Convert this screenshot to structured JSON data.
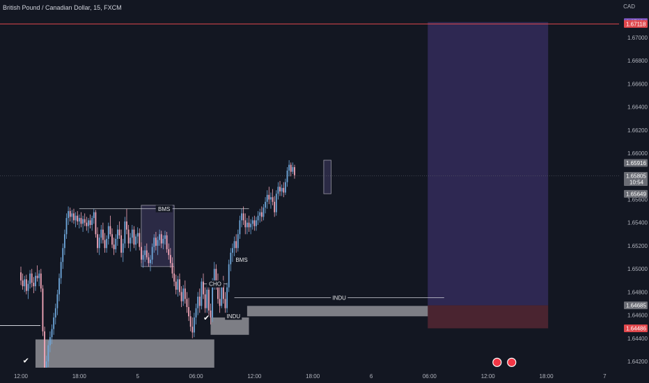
{
  "title": "British Pound / Canadian Dollar, 15, FXCM",
  "currency_label": "CAD",
  "colors": {
    "background": "#131722",
    "up": "#6fa8dc",
    "down": "#f4a7b9",
    "axis_text": "#b2b5be",
    "target_zone": "#2e2852",
    "stop_zone": "#4a2430",
    "order_block": "#7d7e85",
    "resistance_line": "#e0474c"
  },
  "chart_data": {
    "type": "candlestick",
    "ylim": [
      1.6405,
      1.6735
    ],
    "y_ticks": [
      "1.67000",
      "1.66800",
      "1.66600",
      "1.66400",
      "1.66200",
      "1.66000",
      "1.65800",
      "1.65600",
      "1.65400",
      "1.65200",
      "1.65000",
      "1.64800",
      "1.64600",
      "1.64400",
      "1.64200"
    ],
    "x_ticks": [
      "12:00",
      "18:00",
      "5",
      "06:00",
      "12:00",
      "18:00",
      "6",
      "06:00",
      "12:00",
      "18:00",
      "7"
    ],
    "x_tick_index": [
      0,
      32,
      64,
      96,
      128,
      160,
      192,
      224,
      256,
      288,
      320
    ],
    "price_labels": [
      {
        "value": 1.67134,
        "text": "1.67134",
        "color": "#7e57c2"
      },
      {
        "value": 1.67118,
        "text": "1.67118",
        "color": "#e0474c"
      },
      {
        "value": 1.65916,
        "text": "1.65916",
        "color": "#6b6d75"
      },
      {
        "value": 1.65805,
        "text": "1.65805",
        "sub": "10:54",
        "color": "#6b6d75"
      },
      {
        "value": 1.65649,
        "text": "1.65649",
        "color": "#6b6d75"
      },
      {
        "value": 1.64685,
        "text": "1.64685",
        "color": "#6b6d75"
      },
      {
        "value": 1.64486,
        "text": "1.64486",
        "color": "#e0474c"
      }
    ],
    "resistance_level": 1.67118,
    "current_price": 1.65805,
    "annotations": [
      {
        "text": "BMS",
        "x1": 32,
        "x2": 125,
        "y": 1.6552
      },
      {
        "text": "BMS",
        "x1": 117,
        "x2": 125,
        "y": 1.6508
      },
      {
        "text": "CHO",
        "x1": 100,
        "x2": 113,
        "y": 1.6487
      },
      {
        "text": "INDU",
        "x1": 113,
        "x2": 120,
        "y": 1.6459
      },
      {
        "text": "INDU",
        "x1": 117,
        "x2": 232,
        "y": 1.6475
      }
    ],
    "zones": [
      {
        "kind": "order_block",
        "x1": 8,
        "x2": 106,
        "y1": 1.6439,
        "y2": 1.6411
      },
      {
        "kind": "order_block",
        "x1": 104,
        "x2": 125,
        "y1": 1.6458,
        "y2": 1.6443
      },
      {
        "kind": "order_block",
        "x1": 124,
        "x2": 232,
        "y1": 1.6468,
        "y2": 1.6459
      },
      {
        "kind": "imbalance",
        "x1": 66,
        "x2": 84,
        "y1": 1.6555,
        "y2": 1.6502
      },
      {
        "kind": "imbalance",
        "x1": 166,
        "x2": 170,
        "y1": 1.6594,
        "y2": 1.6565
      },
      {
        "kind": "target",
        "x1": 223,
        "x2": 289,
        "y1": 1.67134,
        "y2": 1.64685
      },
      {
        "kind": "stop",
        "x1": 223,
        "x2": 289,
        "y1": 1.64685,
        "y2": 1.64486
      }
    ],
    "checkmarks": [
      {
        "x": 1,
        "y": 1.6421
      },
      {
        "x": 100,
        "y": 1.6458
      }
    ],
    "event_icons": [
      {
        "x": 261,
        "y": 1.6421
      },
      {
        "x": 269,
        "y": 1.6421
      }
    ],
    "ohlc": [
      [
        1.6497,
        1.6502,
        1.6486,
        1.649
      ],
      [
        1.649,
        1.6496,
        1.6482,
        1.6485
      ],
      [
        1.6485,
        1.6494,
        1.648,
        1.6491
      ],
      [
        1.6491,
        1.6495,
        1.6478,
        1.6481
      ],
      [
        1.6481,
        1.649,
        1.6474,
        1.6487
      ],
      [
        1.6487,
        1.6499,
        1.6483,
        1.6496
      ],
      [
        1.6496,
        1.65,
        1.6484,
        1.6488
      ],
      [
        1.6488,
        1.6493,
        1.6479,
        1.6485
      ],
      [
        1.6485,
        1.6497,
        1.6481,
        1.6494
      ],
      [
        1.6494,
        1.6503,
        1.6489,
        1.6492
      ],
      [
        1.6492,
        1.6499,
        1.6485,
        1.6496
      ],
      [
        1.6496,
        1.65,
        1.648,
        1.6483
      ],
      [
        1.6483,
        1.6486,
        1.6442,
        1.6446
      ],
      [
        1.6446,
        1.645,
        1.6408,
        1.6412
      ],
      [
        1.6412,
        1.6425,
        1.6406,
        1.642
      ],
      [
        1.642,
        1.6438,
        1.6415,
        1.6434
      ],
      [
        1.6434,
        1.6446,
        1.6428,
        1.6441
      ],
      [
        1.6441,
        1.6452,
        1.6435,
        1.6448
      ],
      [
        1.6448,
        1.6462,
        1.6443,
        1.6458
      ],
      [
        1.6458,
        1.647,
        1.6452,
        1.6466
      ],
      [
        1.6466,
        1.6482,
        1.646,
        1.6478
      ],
      [
        1.6478,
        1.6496,
        1.6472,
        1.6492
      ],
      [
        1.6492,
        1.651,
        1.6487,
        1.6506
      ],
      [
        1.6506,
        1.6522,
        1.65,
        1.6518
      ],
      [
        1.6518,
        1.6534,
        1.6512,
        1.653
      ],
      [
        1.653,
        1.6548,
        1.6526,
        1.6544
      ],
      [
        1.6544,
        1.6554,
        1.6538,
        1.655
      ],
      [
        1.655,
        1.6553,
        1.6541,
        1.6545
      ],
      [
        1.6545,
        1.6551,
        1.654,
        1.6548
      ],
      [
        1.6548,
        1.6552,
        1.6539,
        1.6542
      ],
      [
        1.6542,
        1.6549,
        1.6536,
        1.6546
      ],
      [
        1.6546,
        1.655,
        1.6538,
        1.6541
      ],
      [
        1.6541,
        1.6547,
        1.6535,
        1.6544
      ],
      [
        1.6544,
        1.6549,
        1.6536,
        1.6539
      ],
      [
        1.6539,
        1.6546,
        1.6532,
        1.6543
      ],
      [
        1.6543,
        1.6548,
        1.6537,
        1.654
      ],
      [
        1.654,
        1.6545,
        1.6533,
        1.6537
      ],
      [
        1.6537,
        1.6544,
        1.6531,
        1.6542
      ],
      [
        1.6542,
        1.6547,
        1.6535,
        1.6538
      ],
      [
        1.6538,
        1.6546,
        1.6533,
        1.6544
      ],
      [
        1.6544,
        1.6552,
        1.6539,
        1.6549
      ],
      [
        1.6549,
        1.6551,
        1.6527,
        1.653
      ],
      [
        1.653,
        1.6536,
        1.6514,
        1.6518
      ],
      [
        1.6518,
        1.653,
        1.6512,
        1.6527
      ],
      [
        1.6527,
        1.6538,
        1.6522,
        1.6534
      ],
      [
        1.6534,
        1.654,
        1.6522,
        1.6525
      ],
      [
        1.6525,
        1.6531,
        1.6514,
        1.6518
      ],
      [
        1.6518,
        1.6529,
        1.6514,
        1.6526
      ],
      [
        1.6526,
        1.654,
        1.6521,
        1.6537
      ],
      [
        1.6537,
        1.6546,
        1.6528,
        1.653
      ],
      [
        1.653,
        1.6535,
        1.6518,
        1.6521
      ],
      [
        1.6521,
        1.6527,
        1.6512,
        1.6517
      ],
      [
        1.6517,
        1.653,
        1.6514,
        1.6526
      ],
      [
        1.6526,
        1.6538,
        1.652,
        1.6534
      ],
      [
        1.6534,
        1.6541,
        1.6526,
        1.6529
      ],
      [
        1.6529,
        1.6534,
        1.651,
        1.6514
      ],
      [
        1.6514,
        1.6526,
        1.6506,
        1.6522
      ],
      [
        1.6522,
        1.6545,
        1.6518,
        1.6541
      ],
      [
        1.6541,
        1.6552,
        1.653,
        1.6534
      ],
      [
        1.6534,
        1.6538,
        1.6518,
        1.6522
      ],
      [
        1.6522,
        1.6531,
        1.6515,
        1.6527
      ],
      [
        1.6527,
        1.6538,
        1.6522,
        1.6534
      ],
      [
        1.6534,
        1.6537,
        1.6518,
        1.6521
      ],
      [
        1.6521,
        1.653,
        1.6516,
        1.6528
      ],
      [
        1.6528,
        1.6536,
        1.6522,
        1.6531
      ],
      [
        1.6531,
        1.6535,
        1.6516,
        1.6519
      ],
      [
        1.6519,
        1.6523,
        1.6505,
        1.6508
      ],
      [
        1.6508,
        1.6516,
        1.6501,
        1.6512
      ],
      [
        1.6512,
        1.652,
        1.6506,
        1.6516
      ],
      [
        1.6516,
        1.6522,
        1.6508,
        1.651
      ],
      [
        1.651,
        1.6514,
        1.6502,
        1.6505
      ],
      [
        1.6505,
        1.6512,
        1.6498,
        1.6508
      ],
      [
        1.6508,
        1.6522,
        1.6504,
        1.6519
      ],
      [
        1.6519,
        1.653,
        1.6514,
        1.6527
      ],
      [
        1.6527,
        1.6532,
        1.6516,
        1.652
      ],
      [
        1.652,
        1.6528,
        1.6512,
        1.6525
      ],
      [
        1.6525,
        1.6534,
        1.652,
        1.653
      ],
      [
        1.653,
        1.6533,
        1.6518,
        1.6522
      ],
      [
        1.6522,
        1.6529,
        1.6517,
        1.6526
      ],
      [
        1.6526,
        1.6533,
        1.6521,
        1.6529
      ],
      [
        1.6529,
        1.6532,
        1.6514,
        1.6517
      ],
      [
        1.6517,
        1.6522,
        1.6508,
        1.6512
      ],
      [
        1.6512,
        1.6518,
        1.6501,
        1.6505
      ],
      [
        1.6505,
        1.651,
        1.6492,
        1.6496
      ],
      [
        1.6496,
        1.6502,
        1.6485,
        1.6489
      ],
      [
        1.6489,
        1.6495,
        1.6478,
        1.6482
      ],
      [
        1.6482,
        1.6494,
        1.6476,
        1.6491
      ],
      [
        1.6491,
        1.6496,
        1.6477,
        1.648
      ],
      [
        1.648,
        1.6485,
        1.6467,
        1.6472
      ],
      [
        1.6472,
        1.6486,
        1.6468,
        1.6483
      ],
      [
        1.6483,
        1.649,
        1.647,
        1.6474
      ],
      [
        1.6474,
        1.648,
        1.6462,
        1.6467
      ],
      [
        1.6467,
        1.6475,
        1.6455,
        1.6459
      ],
      [
        1.6459,
        1.6464,
        1.6446,
        1.645
      ],
      [
        1.645,
        1.6458,
        1.644,
        1.6445
      ],
      [
        1.6445,
        1.6462,
        1.6441,
        1.6458
      ],
      [
        1.6458,
        1.647,
        1.6452,
        1.6466
      ],
      [
        1.6466,
        1.648,
        1.646,
        1.6476
      ],
      [
        1.6476,
        1.6483,
        1.6462,
        1.6468
      ],
      [
        1.6468,
        1.6492,
        1.6465,
        1.6489
      ],
      [
        1.6489,
        1.6496,
        1.6474,
        1.6478
      ],
      [
        1.6478,
        1.6484,
        1.6462,
        1.6466
      ],
      [
        1.6466,
        1.6486,
        1.6462,
        1.6482
      ],
      [
        1.6482,
        1.6488,
        1.646,
        1.6464
      ],
      [
        1.6464,
        1.647,
        1.6452,
        1.6458
      ],
      [
        1.6458,
        1.6492,
        1.6454,
        1.6488
      ],
      [
        1.6488,
        1.6506,
        1.6482,
        1.65
      ],
      [
        1.65,
        1.6504,
        1.6482,
        1.6486
      ],
      [
        1.6486,
        1.6496,
        1.647,
        1.6474
      ],
      [
        1.6474,
        1.6486,
        1.6462,
        1.6468
      ],
      [
        1.6468,
        1.649,
        1.6466,
        1.6486
      ],
      [
        1.6486,
        1.6494,
        1.647,
        1.6474
      ],
      [
        1.6474,
        1.648,
        1.6462,
        1.6466
      ],
      [
        1.6466,
        1.6488,
        1.6462,
        1.6484
      ],
      [
        1.6484,
        1.6508,
        1.648,
        1.6504
      ],
      [
        1.6504,
        1.6518,
        1.6498,
        1.6514
      ],
      [
        1.6514,
        1.6522,
        1.6506,
        1.6518
      ],
      [
        1.6518,
        1.6528,
        1.651,
        1.6524
      ],
      [
        1.6524,
        1.653,
        1.6514,
        1.6518
      ],
      [
        1.6518,
        1.6534,
        1.6515,
        1.653
      ],
      [
        1.653,
        1.6546,
        1.6526,
        1.6542
      ],
      [
        1.6542,
        1.6552,
        1.6536,
        1.6548
      ],
      [
        1.6548,
        1.6554,
        1.6538,
        1.6542
      ],
      [
        1.6542,
        1.6548,
        1.653,
        1.6536
      ],
      [
        1.6536,
        1.6544,
        1.653,
        1.654
      ],
      [
        1.654,
        1.6546,
        1.6532,
        1.6536
      ],
      [
        1.6536,
        1.6543,
        1.653,
        1.6539
      ],
      [
        1.6539,
        1.6545,
        1.6534,
        1.6542
      ],
      [
        1.6542,
        1.6546,
        1.6533,
        1.6537
      ],
      [
        1.6537,
        1.6545,
        1.6533,
        1.6542
      ],
      [
        1.6542,
        1.655,
        1.6538,
        1.6546
      ],
      [
        1.6546,
        1.6552,
        1.654,
        1.6549
      ],
      [
        1.6549,
        1.6554,
        1.6541,
        1.6545
      ],
      [
        1.6545,
        1.6556,
        1.6542,
        1.6553
      ],
      [
        1.6553,
        1.6562,
        1.6548,
        1.6558
      ],
      [
        1.6558,
        1.6568,
        1.6552,
        1.6564
      ],
      [
        1.6564,
        1.6571,
        1.6556,
        1.656
      ],
      [
        1.656,
        1.6566,
        1.6552,
        1.6562
      ],
      [
        1.6562,
        1.6569,
        1.6555,
        1.6558
      ],
      [
        1.6558,
        1.6563,
        1.6545,
        1.6549
      ],
      [
        1.6549,
        1.6568,
        1.6546,
        1.6565
      ],
      [
        1.6565,
        1.6575,
        1.656,
        1.6571
      ],
      [
        1.6571,
        1.6576,
        1.6563,
        1.6567
      ],
      [
        1.6567,
        1.6573,
        1.6563,
        1.657
      ],
      [
        1.657,
        1.6575,
        1.6562,
        1.6566
      ],
      [
        1.6566,
        1.6578,
        1.6564,
        1.6575
      ],
      [
        1.6575,
        1.6588,
        1.6571,
        1.6585
      ],
      [
        1.6585,
        1.6594,
        1.658,
        1.659
      ],
      [
        1.659,
        1.6592,
        1.658,
        1.6584
      ],
      [
        1.6584,
        1.6592,
        1.6582,
        1.6588
      ],
      [
        1.6588,
        1.659,
        1.6578,
        1.6581
      ]
    ]
  }
}
